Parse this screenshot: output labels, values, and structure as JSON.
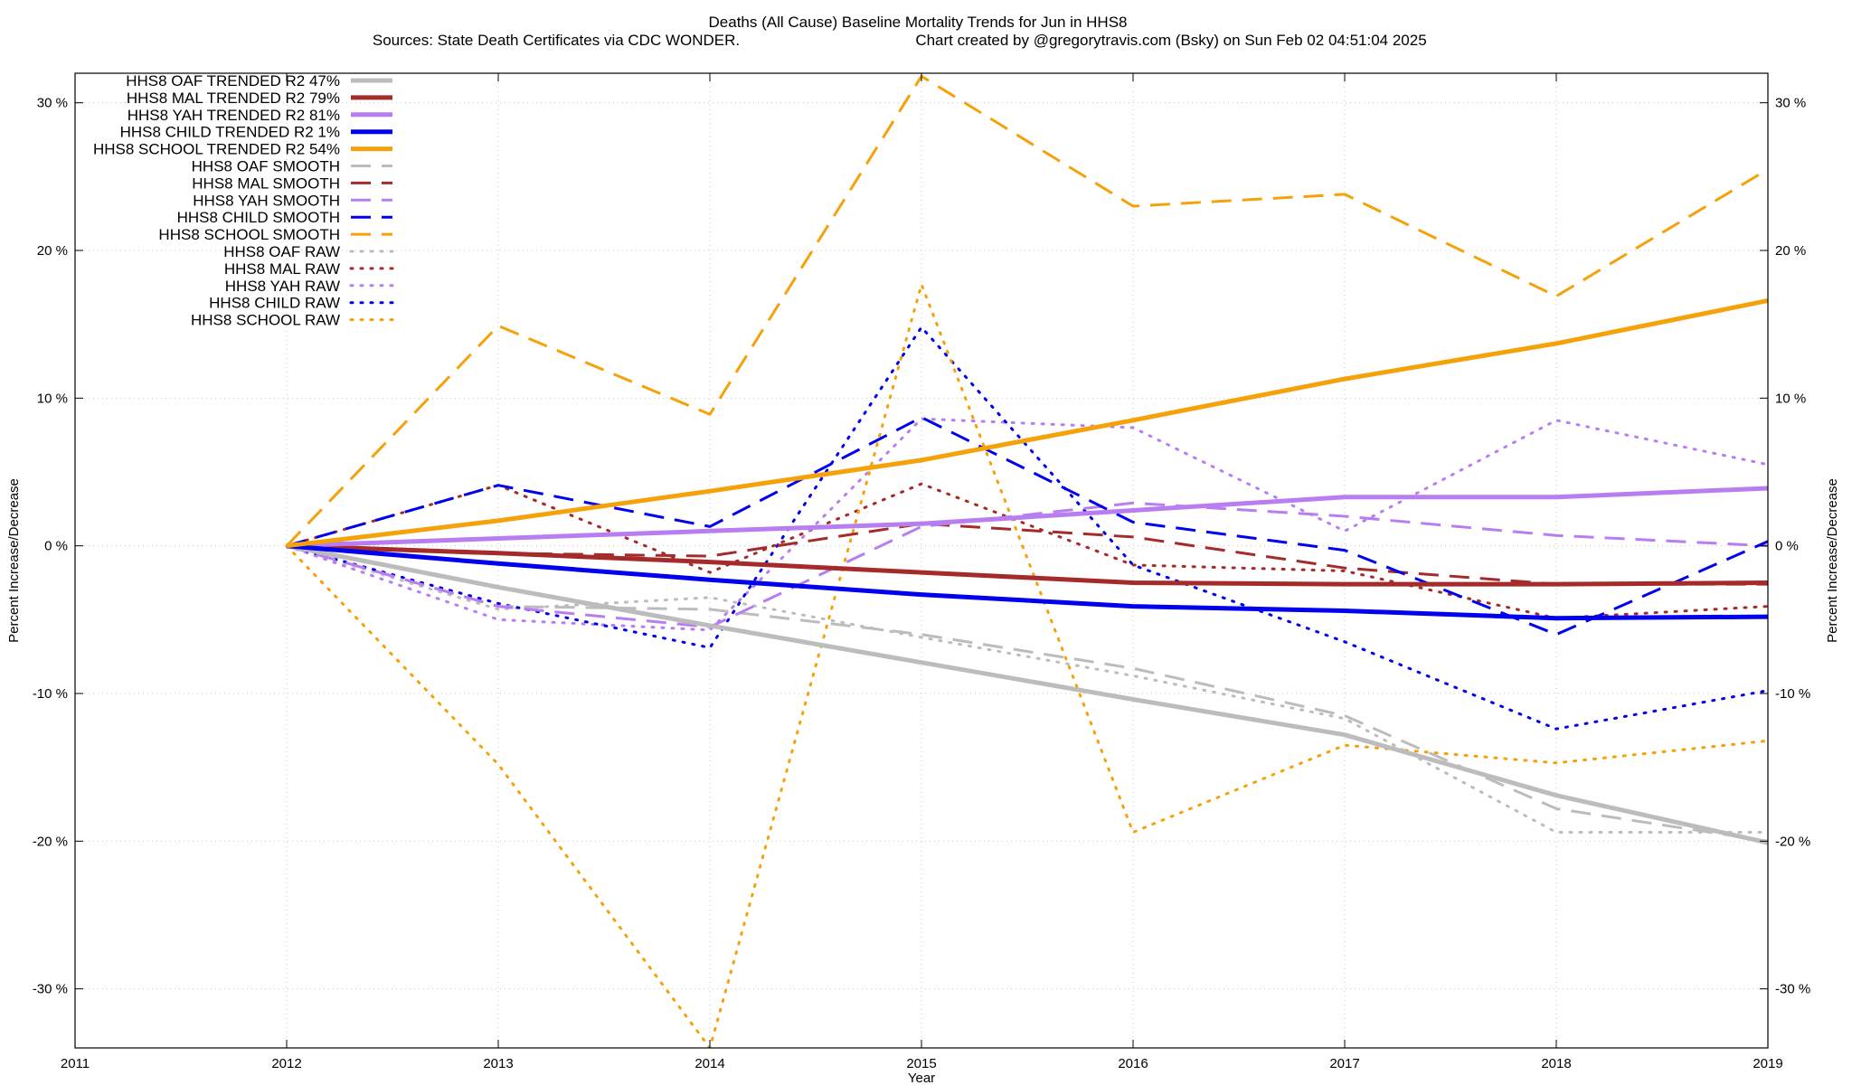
{
  "chart_data": {
    "type": "line",
    "title": "Deaths (All Cause)  Baseline Mortality Trends for Jun in HHS8",
    "subtitle_left": "Sources: State Death Certificates via CDC WONDER.",
    "subtitle_right": "Chart created by @gregorytravis.com (Bsky) on Sun Feb 02 04:51:04 2025",
    "xlabel": "Year",
    "ylabel": "Percent Increase/Decrease",
    "y2label": "Percent Increase/Decrease",
    "xlim": [
      2011,
      2019
    ],
    "ylim": [
      -34,
      32
    ],
    "x_ticks": [
      "2011",
      "2012",
      "2013",
      "2014",
      "2015",
      "2016",
      "2017",
      "2018",
      "2019"
    ],
    "y_ticks": [
      {
        "value": 30,
        "label": "30 %"
      },
      {
        "value": 20,
        "label": "20 %"
      },
      {
        "value": 10,
        "label": "10 %"
      },
      {
        "value": 0,
        "label": "0 %"
      },
      {
        "value": -10,
        "label": "-10 %"
      },
      {
        "value": -20,
        "label": "-20 %"
      },
      {
        "value": -30,
        "label": "-30 %"
      }
    ],
    "grid": true,
    "legend_position": "top-left",
    "x": [
      2012,
      2013,
      2014,
      2015,
      2016,
      2017,
      2018,
      2019
    ],
    "series": [
      {
        "name": "HHS8 OAF TRENDED R2  47%",
        "style": "solid",
        "color": "#bcbcbc",
        "width": 5,
        "values": [
          0,
          -2.8,
          -5.4,
          -7.9,
          -10.4,
          -12.8,
          -16.9,
          -20.1
        ]
      },
      {
        "name": "HHS8 MAL TRENDED R2  79%",
        "style": "solid",
        "color": "#a52a2a",
        "width": 5,
        "values": [
          0,
          -0.5,
          -1.1,
          -1.8,
          -2.5,
          -2.6,
          -2.6,
          -2.5
        ]
      },
      {
        "name": "HHS8 YAH TRENDED R2  81%",
        "style": "solid",
        "color": "#b87df0",
        "width": 5,
        "values": [
          0,
          0.5,
          1.0,
          1.5,
          2.4,
          3.3,
          3.3,
          3.9
        ]
      },
      {
        "name": "HHS8 CHILD TRENDED R2   1%",
        "style": "solid",
        "color": "#0000ee",
        "width": 5,
        "values": [
          0,
          -1.2,
          -2.3,
          -3.3,
          -4.1,
          -4.4,
          -4.9,
          -4.8
        ]
      },
      {
        "name": "HHS8 SCHOOL TRENDED R2  54%",
        "style": "solid",
        "color": "#f5a10a",
        "width": 5,
        "values": [
          0,
          1.7,
          3.7,
          5.8,
          8.5,
          11.3,
          13.7,
          16.6
        ]
      },
      {
        "name": "HHS8 OAF SMOOTH",
        "style": "dashed",
        "color": "#bcbcbc",
        "width": 3,
        "values": [
          0,
          -4.1,
          -4.3,
          -6.0,
          -8.3,
          -11.5,
          -17.8,
          -20.0
        ]
      },
      {
        "name": "HHS8 MAL SMOOTH",
        "style": "dashed",
        "color": "#a52a2a",
        "width": 3,
        "values": [
          0,
          -0.5,
          -0.7,
          1.5,
          0.6,
          -1.5,
          -2.6,
          -2.6
        ]
      },
      {
        "name": "HHS8 YAH SMOOTH",
        "style": "dashed",
        "color": "#b87df0",
        "width": 3,
        "values": [
          0,
          -4.1,
          -5.5,
          1.3,
          2.9,
          2.0,
          0.7,
          0.0
        ]
      },
      {
        "name": "HHS8 CHILD SMOOTH",
        "style": "dashed",
        "color": "#0000ee",
        "width": 3,
        "values": [
          0,
          4.1,
          1.3,
          8.7,
          1.6,
          -0.3,
          -6.0,
          0.3
        ]
      },
      {
        "name": "HHS8 SCHOOL SMOOTH",
        "style": "dashed",
        "color": "#f5a10a",
        "width": 3,
        "values": [
          0,
          14.9,
          8.9,
          31.8,
          23.0,
          23.8,
          16.9,
          25.5
        ]
      },
      {
        "name": "HHS8 OAF RAW",
        "style": "dotted",
        "color": "#bcbcbc",
        "width": 3,
        "values": [
          0,
          -4.3,
          -3.5,
          -6.2,
          -8.8,
          -11.7,
          -19.4,
          -19.4
        ]
      },
      {
        "name": "HHS8 MAL RAW",
        "style": "dotted",
        "color": "#a52a2a",
        "width": 3,
        "values": [
          0,
          4.1,
          -1.8,
          4.2,
          -1.3,
          -1.7,
          -4.9,
          -4.1
        ]
      },
      {
        "name": "HHS8 YAH RAW",
        "style": "dotted",
        "color": "#b87df0",
        "width": 3,
        "values": [
          0,
          -5.0,
          -5.7,
          8.6,
          8.0,
          1.0,
          8.5,
          5.5
        ]
      },
      {
        "name": "HHS8 CHILD RAW",
        "style": "dotted",
        "color": "#0000ee",
        "width": 3,
        "values": [
          0,
          -3.9,
          -6.9,
          14.8,
          -1.3,
          -6.5,
          -12.4,
          -9.8
        ]
      },
      {
        "name": "HHS8 SCHOOL RAW",
        "style": "dotted",
        "color": "#f5a10a",
        "width": 3,
        "values": [
          0,
          -14.8,
          -34.0,
          17.7,
          -19.4,
          -13.5,
          -14.7,
          -13.2
        ]
      }
    ]
  }
}
